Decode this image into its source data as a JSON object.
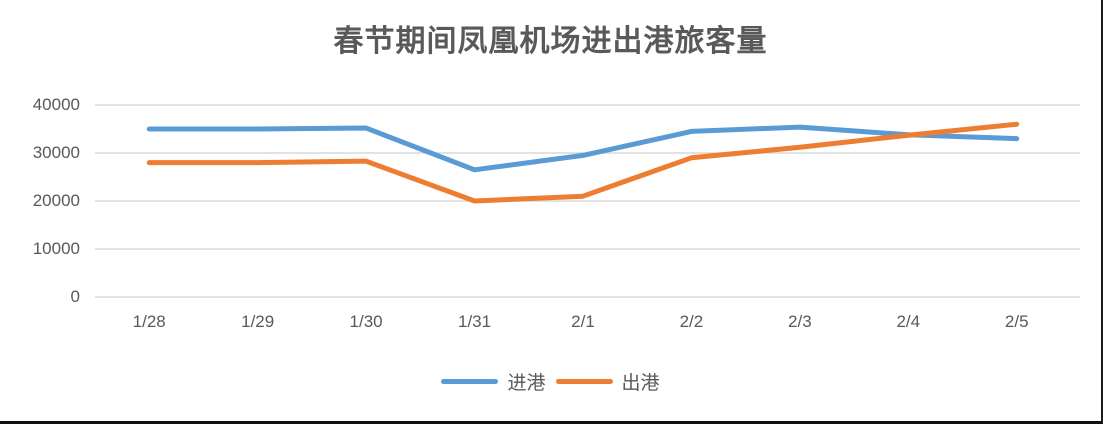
{
  "title": "春节期间凤凰机场进出港旅客量",
  "legend": {
    "items": [
      {
        "name": "进港",
        "color": "#5B9BD5"
      },
      {
        "name": "出港",
        "color": "#ED7D31"
      }
    ]
  },
  "chart_data": {
    "type": "line",
    "title": "春节期间凤凰机场进出港旅客量",
    "categories": [
      "1/28",
      "1/29",
      "1/30",
      "1/31",
      "2/1",
      "2/2",
      "2/3",
      "2/4",
      "2/5"
    ],
    "series": [
      {
        "name": "进港",
        "color": "#5B9BD5",
        "values": [
          35000,
          35000,
          35200,
          26500,
          29500,
          34500,
          35400,
          33800,
          33000
        ]
      },
      {
        "name": "出港",
        "color": "#ED7D31",
        "values": [
          28000,
          28000,
          28300,
          20000,
          21000,
          29000,
          31200,
          33700,
          36000
        ]
      }
    ],
    "yticks": [
      40000,
      30000,
      20000,
      10000,
      0
    ],
    "ytick_labels": [
      "40000",
      "30000",
      "20000",
      "10000",
      "0"
    ],
    "ylim": [
      0,
      40000
    ],
    "grid": true,
    "legend_position": "bottom",
    "line_width": 5,
    "colors": {
      "grid": "#D9D9D9",
      "text": "#595959",
      "background": "#FFFFFF"
    }
  }
}
